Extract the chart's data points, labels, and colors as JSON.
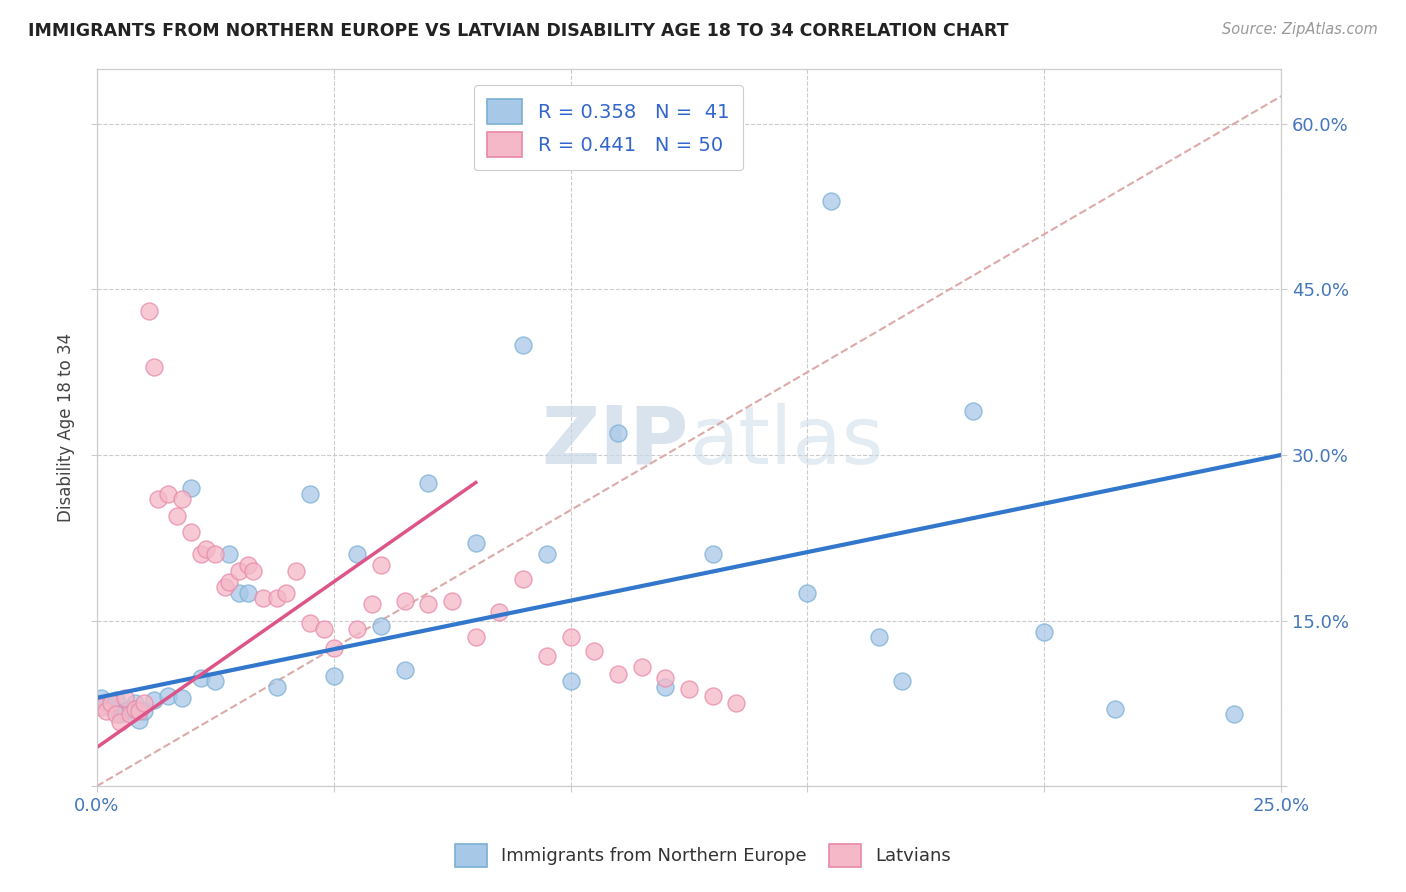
{
  "title": "IMMIGRANTS FROM NORTHERN EUROPE VS LATVIAN DISABILITY AGE 18 TO 34 CORRELATION CHART",
  "source": "Source: ZipAtlas.com",
  "ylabel": "Disability Age 18 to 34",
  "xlim": [
    0.0,
    0.25
  ],
  "ylim": [
    0.0,
    0.65
  ],
  "xticks": [
    0.0,
    0.05,
    0.1,
    0.15,
    0.2,
    0.25
  ],
  "xticklabels": [
    "0.0%",
    "",
    "",
    "",
    "",
    "25.0%"
  ],
  "yticks": [
    0.0,
    0.15,
    0.3,
    0.45,
    0.6
  ],
  "yticklabels_right": [
    "",
    "15.0%",
    "30.0%",
    "45.0%",
    "60.0%"
  ],
  "blue_color": "#a8c8e8",
  "pink_color": "#f4b8c8",
  "blue_edge_color": "#7aafd4",
  "pink_edge_color": "#e888a8",
  "blue_line_color": "#3377cc",
  "pink_line_color": "#dd5588",
  "ref_line_color": "#ddaaaa",
  "watermark_color": "#c8d8e8",
  "blue_scatter_x": [
    0.001,
    0.002,
    0.003,
    0.004,
    0.005,
    0.006,
    0.007,
    0.008,
    0.009,
    0.01,
    0.012,
    0.015,
    0.018,
    0.02,
    0.022,
    0.025,
    0.028,
    0.03,
    0.032,
    0.038,
    0.045,
    0.05,
    0.055,
    0.06,
    0.065,
    0.07,
    0.08,
    0.09,
    0.095,
    0.1,
    0.11,
    0.12,
    0.13,
    0.15,
    0.155,
    0.165,
    0.17,
    0.185,
    0.2,
    0.215,
    0.24
  ],
  "blue_scatter_y": [
    0.08,
    0.075,
    0.072,
    0.078,
    0.065,
    0.068,
    0.07,
    0.075,
    0.06,
    0.068,
    0.078,
    0.082,
    0.08,
    0.27,
    0.098,
    0.095,
    0.21,
    0.175,
    0.175,
    0.09,
    0.265,
    0.1,
    0.21,
    0.145,
    0.105,
    0.275,
    0.22,
    0.4,
    0.21,
    0.095,
    0.32,
    0.09,
    0.21,
    0.175,
    0.53,
    0.135,
    0.095,
    0.34,
    0.14,
    0.07,
    0.065
  ],
  "pink_scatter_x": [
    0.001,
    0.002,
    0.003,
    0.004,
    0.005,
    0.006,
    0.007,
    0.008,
    0.009,
    0.01,
    0.011,
    0.012,
    0.013,
    0.015,
    0.017,
    0.018,
    0.02,
    0.022,
    0.023,
    0.025,
    0.027,
    0.028,
    0.03,
    0.032,
    0.033,
    0.035,
    0.038,
    0.04,
    0.042,
    0.045,
    0.048,
    0.05,
    0.055,
    0.058,
    0.06,
    0.065,
    0.07,
    0.075,
    0.08,
    0.085,
    0.09,
    0.095,
    0.1,
    0.105,
    0.11,
    0.115,
    0.12,
    0.125,
    0.13,
    0.135
  ],
  "pink_scatter_y": [
    0.072,
    0.068,
    0.075,
    0.065,
    0.058,
    0.08,
    0.065,
    0.07,
    0.068,
    0.075,
    0.43,
    0.38,
    0.26,
    0.265,
    0.245,
    0.26,
    0.23,
    0.21,
    0.215,
    0.21,
    0.18,
    0.185,
    0.195,
    0.2,
    0.195,
    0.17,
    0.17,
    0.175,
    0.195,
    0.148,
    0.142,
    0.125,
    0.142,
    0.165,
    0.2,
    0.168,
    0.165,
    0.168,
    0.135,
    0.158,
    0.188,
    0.118,
    0.135,
    0.122,
    0.102,
    0.108,
    0.098,
    0.088,
    0.082,
    0.075
  ],
  "blue_line_x": [
    0.0,
    0.25
  ],
  "blue_line_y": [
    0.08,
    0.3
  ],
  "pink_line_x": [
    0.0,
    0.08
  ],
  "pink_line_y": [
    0.035,
    0.275
  ]
}
